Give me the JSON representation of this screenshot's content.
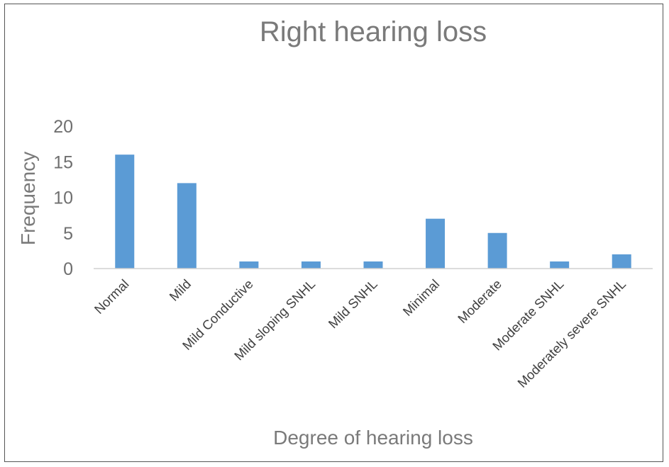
{
  "chart_data": {
    "type": "bar",
    "title": "Right hearing loss",
    "xlabel": "Degree of hearing loss",
    "ylabel": "Frequency",
    "categories": [
      "Normal",
      "Mild",
      "Mild Conductive",
      "Mild sloping SNHL",
      "Mild SNHL",
      "Minimal",
      "Moderate",
      "Moderate SNHL",
      "Moderately severe SNHL"
    ],
    "values": [
      16,
      12,
      1,
      1,
      1,
      7,
      5,
      1,
      2
    ],
    "ylim": [
      0,
      20
    ],
    "yticks": [
      "0",
      "5",
      "10",
      "15",
      "20"
    ],
    "grid": false,
    "legend": "none",
    "bar_color": "#5b9bd5"
  }
}
